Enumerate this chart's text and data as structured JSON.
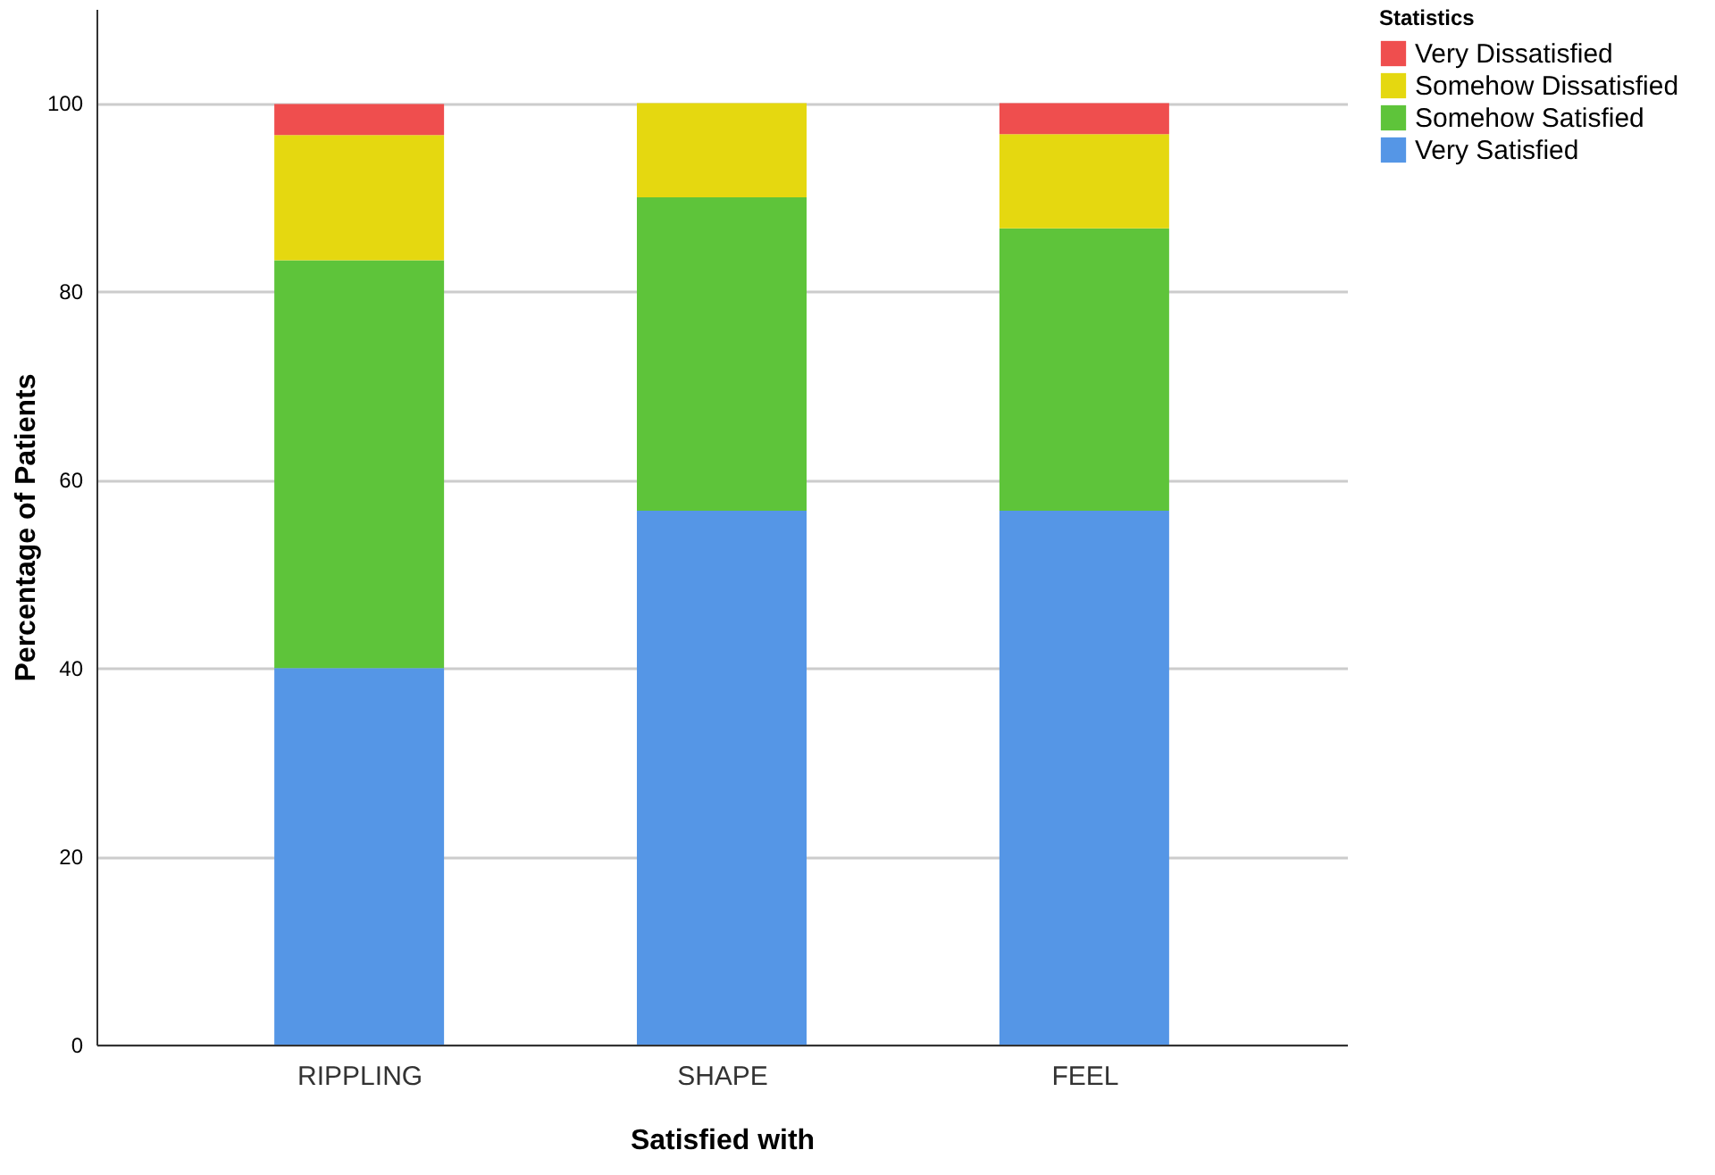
{
  "chart_data": {
    "type": "bar",
    "stacked": true,
    "xlabel": "Satisfied with",
    "ylabel": "Percentage of Patients",
    "legend_title": "Statistics",
    "legend": "top right",
    "grid": "y",
    "categories": [
      "RIPPLING",
      "SHAPE",
      "FEEL"
    ],
    "ylim": [
      0,
      110
    ],
    "yticks": [
      0,
      20,
      40,
      60,
      80,
      100
    ],
    "series": [
      {
        "name": "Very Satisfied",
        "color": "#5596e6",
        "values": [
          40,
          56.7,
          56.7
        ]
      },
      {
        "name": "Somehow Satisfied",
        "color": "#5ec43a",
        "values": [
          43.3,
          33.3,
          30
        ]
      },
      {
        "name": "Somehow Dissatisfied",
        "color": "#e5d810",
        "values": [
          13.3,
          10,
          10
        ]
      },
      {
        "name": "Very Dissatisfied",
        "color": "#ef4e4e",
        "values": [
          3.3,
          0,
          3.3
        ]
      }
    ]
  }
}
